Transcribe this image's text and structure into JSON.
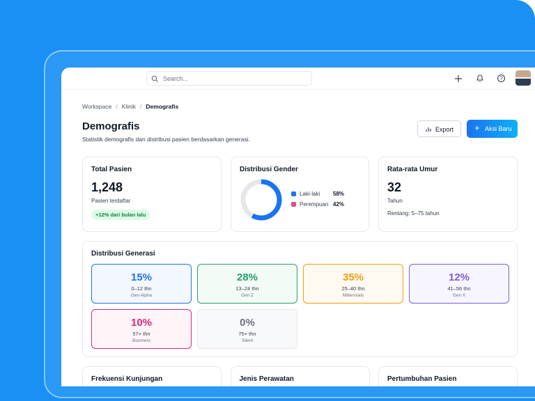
{
  "search_placeholder": "Search...",
  "breadcrumb": [
    "Workspace",
    "Klinik",
    "Demografis"
  ],
  "page": {
    "title": "Demografis",
    "subtitle": "Statistik demografis dan distribusi pasien berdasarkan generasi."
  },
  "actions": [
    "Export",
    "Aksi Baru"
  ],
  "total_pasien": {
    "title": "Total Pasien",
    "value": "1,248",
    "caption": "Pasien terdaftar",
    "badge": "+12% dari bulan lalu"
  },
  "gender": {
    "title": "Distribusi Gender",
    "items": [
      {
        "name": "Laki-laki",
        "value": 58,
        "label": "58%",
        "color": "#1a73f0",
        "ring_color": "#1a73f0"
      },
      {
        "name": "Perempuan",
        "value": 42,
        "label": "42%",
        "color": "#e8488a",
        "ring_color": "#e5e7eb"
      }
    ]
  },
  "umur": {
    "title": "Rata-rata Umur",
    "value": "32",
    "unit": "Tahun",
    "range": "Rentang: 5–75 tahun"
  },
  "generasi": {
    "title": "Distribusi Generasi",
    "tiles": [
      {
        "percent": "15%",
        "age": "0–12 thn",
        "name": "Gen Alpha",
        "color": "#1a73e8",
        "bg": "#f3f7ff"
      },
      {
        "percent": "28%",
        "age": "13–24 thn",
        "name": "Gen Z",
        "color": "#22a06b",
        "bg": "#f3fbf6"
      },
      {
        "percent": "35%",
        "age": "25–40 thn",
        "name": "Millennials",
        "color": "#f59e0b",
        "bg": "#fffaf1"
      },
      {
        "percent": "12%",
        "age": "41–56 thn",
        "name": "Gen X",
        "color": "#7c5cd6",
        "bg": "#f7f5ff"
      },
      {
        "percent": "10%",
        "age": "57+ thn",
        "name": "Boomers",
        "color": "#db2777",
        "bg": "#fff5f9"
      },
      {
        "percent": "0%",
        "age": "75+ thn",
        "name": "Silent",
        "color": "#6b7280",
        "bg": "#f8f9fa",
        "border": "#e5e7eb"
      }
    ]
  },
  "bottom_cards": [
    "Frekuensi Kunjungan",
    "Jenis Perawatan",
    "Pertumbuhan Pasien"
  ]
}
